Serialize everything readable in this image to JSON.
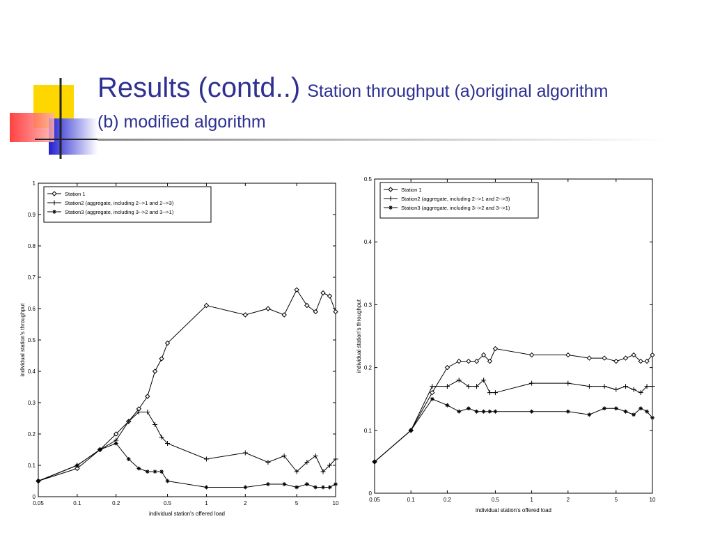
{
  "title": "Results (contd..)",
  "subtitle": "Station throughput  (a)original algorithm (b) modified algorithm",
  "chart_data": [
    {
      "type": "line",
      "xscale": "log",
      "xlim": [
        0.05,
        10
      ],
      "xticks": [
        0.05,
        0.1,
        0.2,
        0.5,
        1,
        2,
        5,
        10
      ],
      "ylim": [
        0,
        1
      ],
      "yticks": [
        0,
        0.1,
        0.2,
        0.3,
        0.4,
        0.5,
        0.6,
        0.7,
        0.8,
        0.9,
        1
      ],
      "xlabel": "individual station's offered load",
      "ylabel": "individual station's throughput",
      "legend": "upper left",
      "grid": false,
      "x": [
        0.05,
        0.1,
        0.15,
        0.2,
        0.25,
        0.3,
        0.35,
        0.4,
        0.45,
        0.5,
        1,
        2,
        3,
        4,
        5,
        6,
        7,
        8,
        9,
        10
      ],
      "series": [
        {
          "name": "Station 1",
          "color": "#000000",
          "marker": "diamond",
          "values": [
            0.05,
            0.09,
            0.15,
            0.2,
            0.24,
            0.28,
            0.32,
            0.4,
            0.44,
            0.49,
            0.61,
            0.58,
            0.6,
            0.58,
            0.66,
            0.61,
            0.59,
            0.65,
            0.64,
            0.59
          ]
        },
        {
          "name": "Station2 (aggregate, including 2-->1 and 2-->3)",
          "color": "#000000",
          "marker": "plus",
          "values": [
            0.05,
            0.1,
            0.15,
            0.18,
            0.24,
            0.27,
            0.27,
            0.23,
            0.19,
            0.17,
            0.12,
            0.14,
            0.11,
            0.13,
            0.08,
            0.11,
            0.13,
            0.08,
            0.1,
            0.12
          ]
        },
        {
          "name": "Station3 (aggregate, including 3-->2 and 3-->1)",
          "color": "#000000",
          "marker": "star",
          "values": [
            0.05,
            0.1,
            0.15,
            0.17,
            0.12,
            0.09,
            0.08,
            0.08,
            0.08,
            0.05,
            0.03,
            0.03,
            0.04,
            0.04,
            0.03,
            0.04,
            0.03,
            0.03,
            0.03,
            0.04
          ]
        }
      ]
    },
    {
      "type": "line",
      "xscale": "log",
      "xlim": [
        0.05,
        10
      ],
      "xticks": [
        0.05,
        0.1,
        0.2,
        0.5,
        1,
        2,
        5,
        10
      ],
      "ylim": [
        0,
        0.5
      ],
      "yticks": [
        0,
        0.1,
        0.2,
        0.3,
        0.4,
        0.5
      ],
      "xlabel": "individual station's offered load",
      "ylabel": "individual station's throughput",
      "legend": "upper left",
      "grid": false,
      "x": [
        0.05,
        0.1,
        0.15,
        0.2,
        0.25,
        0.3,
        0.35,
        0.4,
        0.45,
        0.5,
        1,
        2,
        3,
        4,
        5,
        6,
        7,
        8,
        9,
        10
      ],
      "series": [
        {
          "name": "Station 1",
          "color": "#000000",
          "marker": "diamond",
          "values": [
            0.05,
            0.1,
            0.16,
            0.2,
            0.21,
            0.21,
            0.21,
            0.22,
            0.21,
            0.23,
            0.22,
            0.22,
            0.215,
            0.215,
            0.21,
            0.215,
            0.22,
            0.21,
            0.21,
            0.22
          ]
        },
        {
          "name": "Station2 (aggregate, including 2-->1 and 2-->3)",
          "color": "#000000",
          "marker": "plus",
          "values": [
            0.05,
            0.1,
            0.17,
            0.17,
            0.18,
            0.17,
            0.17,
            0.18,
            0.16,
            0.16,
            0.175,
            0.175,
            0.17,
            0.17,
            0.165,
            0.17,
            0.165,
            0.16,
            0.17,
            0.17
          ]
        },
        {
          "name": "Station3 (aggregate, including 3-->2 and 3-->1)",
          "color": "#000000",
          "marker": "star",
          "values": [
            0.05,
            0.1,
            0.15,
            0.14,
            0.13,
            0.135,
            0.13,
            0.13,
            0.13,
            0.13,
            0.13,
            0.13,
            0.125,
            0.135,
            0.135,
            0.13,
            0.125,
            0.135,
            0.13,
            0.12
          ]
        }
      ]
    }
  ]
}
